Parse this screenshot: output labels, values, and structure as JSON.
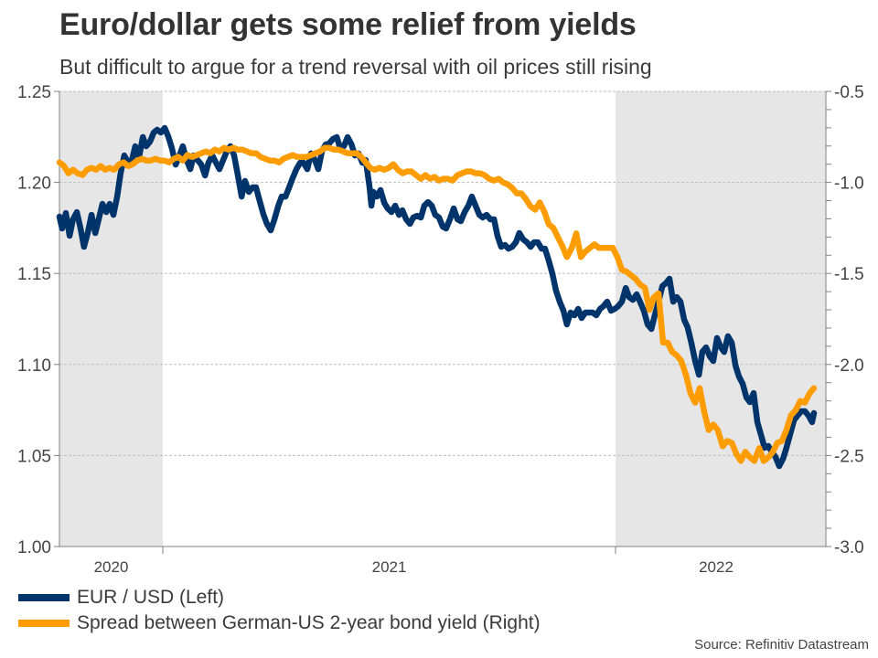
{
  "title": "Euro/dollar gets some relief from yields",
  "subtitle": "But difficult to argue for a trend reversal with oil prices still rising",
  "source": "Source: Refinitiv Datastream",
  "chart_data": {
    "type": "line",
    "title": "Euro/dollar gets some relief from yields",
    "subtitle": "But difficult to argue for a trend reversal with oil prices still rising",
    "xlabel": "",
    "x_axis": {
      "type": "time",
      "range": [
        "2020-10-08",
        "2022-05-28"
      ],
      "tick_labels": [
        "2020",
        "2021",
        "2022"
      ],
      "year_boundaries": [
        "2021-01-01",
        "2022-01-01"
      ],
      "shaded_periods": [
        [
          "2020-10-08",
          "2020-12-31"
        ],
        [
          "2022-01-01",
          "2022-06-05"
        ]
      ]
    },
    "y_left": {
      "label": "EUR / USD",
      "range": [
        1.0,
        1.25
      ],
      "ticks": [
        "1.00",
        "1.05",
        "1.10",
        "1.15",
        "1.20",
        "1.25"
      ]
    },
    "y_right": {
      "label": "Spread",
      "range": [
        -3.0,
        -0.5
      ],
      "ticks": [
        "-3.0",
        "-2.5",
        "-2.0",
        "-1.5",
        "-1.0",
        "-0.5"
      ]
    },
    "grid": true,
    "legend_position": "bottom-left",
    "colors": {
      "eurusd": "#00346b",
      "spread": "#ff9d00",
      "shade": "#e6e6e6",
      "grid": "#bdbdbd",
      "axis": "#808080"
    },
    "series": [
      {
        "name": "EUR / USD (Left)",
        "axis": "left",
        "x_months": [
          0,
          0.07,
          0.17,
          0.27,
          0.36,
          0.46,
          0.56,
          0.65,
          0.75,
          0.85,
          0.95,
          1.04,
          1.14,
          1.24,
          1.33,
          1.43,
          1.53,
          1.62,
          1.72,
          1.82,
          1.92,
          2.01,
          2.11,
          2.21,
          2.3,
          2.4,
          2.5,
          2.59,
          2.69,
          2.79,
          2.89,
          2.98,
          3.08,
          3.18,
          3.27,
          3.37,
          3.47,
          3.56,
          3.66,
          3.76,
          3.86,
          3.95,
          4.05,
          4.15,
          4.24,
          4.34,
          4.44,
          4.53,
          4.63,
          4.73,
          4.83,
          4.92,
          5.02,
          5.12,
          5.21,
          5.31,
          5.41,
          5.5,
          5.6,
          5.7,
          5.8,
          5.89,
          5.99,
          6.09,
          6.18,
          6.28,
          6.38,
          6.47,
          6.57,
          6.67,
          6.77,
          6.86,
          6.96,
          7.06,
          7.15,
          7.25,
          7.35,
          7.44,
          7.54,
          7.64,
          7.74,
          7.83,
          7.93,
          8.03,
          8.12,
          8.22,
          8.27,
          8.32,
          8.41,
          8.51,
          8.61,
          8.7,
          8.8,
          8.9,
          9.0,
          9.09,
          9.19,
          9.29,
          9.38,
          9.48,
          9.58,
          9.67,
          9.77,
          9.87,
          9.96,
          10.06,
          10.16,
          10.25,
          10.35,
          10.45,
          10.55,
          10.64,
          10.74,
          10.84,
          10.93,
          11.03,
          11.13,
          11.22,
          11.32,
          11.42,
          11.52,
          11.61,
          11.71,
          11.81,
          11.9,
          12.0,
          12.1,
          12.19,
          12.29,
          12.39,
          12.49,
          12.58,
          12.68,
          12.78,
          12.87,
          12.97,
          13.07,
          13.16,
          13.26,
          13.36,
          13.45,
          13.55,
          13.65,
          13.75,
          13.84,
          13.94,
          14.04,
          14.13,
          14.23,
          14.33,
          14.42,
          14.52,
          14.62,
          14.72,
          14.81,
          14.91,
          15.01,
          15.1,
          15.2,
          15.3,
          15.39,
          15.49,
          15.59,
          15.69,
          15.78,
          15.88,
          15.98,
          16.07,
          16.17,
          16.27,
          16.36,
          16.46,
          16.56,
          16.65,
          16.75,
          16.85,
          16.95,
          17.04,
          17.14,
          17.24,
          17.33,
          17.43,
          17.53,
          17.62,
          17.72,
          17.82,
          17.92,
          18.01,
          18.11,
          18.21,
          18.3,
          18.4,
          18.5,
          18.59,
          18.69,
          18.79,
          18.89,
          18.98,
          19.08,
          19.18,
          19.27,
          19.37,
          19.47,
          19.56,
          19.66,
          19.76,
          19.86,
          19.95,
          20.0
        ],
        "values": [
          1.1812,
          1.1747,
          1.1832,
          1.1707,
          1.1797,
          1.1837,
          1.1747,
          1.1646,
          1.1722,
          1.1822,
          1.1722,
          1.1797,
          1.1882,
          1.1837,
          1.1882,
          1.1822,
          1.1922,
          1.2048,
          1.2148,
          1.2108,
          1.2123,
          1.2199,
          1.2138,
          1.2249,
          1.2199,
          1.2224,
          1.2274,
          1.2289,
          1.2274,
          1.2299,
          1.2249,
          1.2189,
          1.2098,
          1.2148,
          1.2199,
          1.2123,
          1.2073,
          1.2148,
          1.2123,
          1.2098,
          1.2038,
          1.2108,
          1.2148,
          1.2108,
          1.2073,
          1.2123,
          1.2173,
          1.2199,
          1.2148,
          1.2038,
          1.1922,
          1.2008,
          1.1948,
          1.1973,
          1.1973,
          1.1897,
          1.1822,
          1.1772,
          1.1737,
          1.1797,
          1.1872,
          1.1922,
          1.1922,
          1.1973,
          1.2023,
          1.2073,
          1.2108,
          1.2108,
          1.2073,
          1.2159,
          1.2123,
          1.2073,
          1.2173,
          1.2209,
          1.2214,
          1.2239,
          1.2249,
          1.2189,
          1.2199,
          1.2249,
          1.2209,
          1.2148,
          1.2159,
          1.2108,
          1.2123,
          1.1973,
          1.1872,
          1.1948,
          1.1922,
          1.1958,
          1.1887,
          1.1857,
          1.1837,
          1.1872,
          1.1822,
          1.1847,
          1.1797,
          1.1772,
          1.1807,
          1.1817,
          1.1807,
          1.1872,
          1.1892,
          1.1872,
          1.1822,
          1.1807,
          1.1757,
          1.1747,
          1.1797,
          1.1857,
          1.1797,
          1.1787,
          1.1837,
          1.1872,
          1.1922,
          1.1872,
          1.1822,
          1.1807,
          1.1822,
          1.1797,
          1.1797,
          1.1707,
          1.1646,
          1.1656,
          1.1636,
          1.1646,
          1.1671,
          1.1722,
          1.1687,
          1.1671,
          1.1646,
          1.1671,
          1.1671,
          1.1636,
          1.1636,
          1.1571,
          1.1496,
          1.1406,
          1.1345,
          1.1295,
          1.122,
          1.1285,
          1.127,
          1.1305,
          1.1255,
          1.1285,
          1.1285,
          1.1285,
          1.127,
          1.1305,
          1.132,
          1.1345,
          1.1295,
          1.1305,
          1.132,
          1.1345,
          1.142,
          1.137,
          1.1355,
          1.1385,
          1.1345,
          1.1295,
          1.122,
          1.1195,
          1.127,
          1.1345,
          1.143,
          1.1446,
          1.1471,
          1.1345,
          1.137,
          1.1345,
          1.1245,
          1.1205,
          1.1119,
          1.1019,
          1.0944,
          1.1069,
          1.1094,
          1.1044,
          1.1019,
          1.1145,
          1.1094,
          1.1069,
          1.1155,
          1.1119,
          1.0994,
          1.0934,
          1.0894,
          1.0818,
          1.0793,
          1.0843,
          1.0683,
          1.0618,
          1.0542,
          1.0552,
          1.0517,
          1.0492,
          1.0442,
          1.0482,
          1.0542,
          1.0618,
          1.0693,
          1.0718,
          1.0743,
          1.0743,
          1.0718,
          1.0683,
          1.0733
        ]
      },
      {
        "name": "Spread between German-US 2-year bond yield (Right)",
        "axis": "right",
        "x_months": [
          0,
          0.12,
          0.24,
          0.36,
          0.48,
          0.61,
          0.73,
          0.85,
          0.97,
          1.09,
          1.21,
          1.33,
          1.45,
          1.58,
          1.7,
          1.82,
          1.94,
          2.06,
          2.18,
          2.3,
          2.42,
          2.55,
          2.67,
          2.79,
          2.91,
          3.03,
          3.15,
          3.27,
          3.39,
          3.52,
          3.64,
          3.76,
          3.88,
          4.0,
          4.12,
          4.24,
          4.36,
          4.48,
          4.61,
          4.73,
          4.85,
          4.97,
          5.09,
          5.21,
          5.33,
          5.45,
          5.58,
          5.7,
          5.82,
          5.94,
          6.06,
          6.18,
          6.3,
          6.42,
          6.55,
          6.67,
          6.79,
          6.91,
          7.03,
          7.15,
          7.27,
          7.39,
          7.52,
          7.64,
          7.76,
          7.88,
          8.0,
          8.12,
          8.24,
          8.36,
          8.48,
          8.61,
          8.73,
          8.85,
          8.97,
          9.09,
          9.21,
          9.33,
          9.45,
          9.58,
          9.7,
          9.82,
          9.94,
          10.06,
          10.18,
          10.3,
          10.42,
          10.55,
          10.67,
          10.79,
          10.91,
          11.03,
          11.15,
          11.27,
          11.39,
          11.52,
          11.64,
          11.76,
          11.88,
          12.0,
          12.12,
          12.24,
          12.36,
          12.48,
          12.61,
          12.73,
          12.85,
          12.97,
          13.09,
          13.21,
          13.33,
          13.45,
          13.58,
          13.7,
          13.82,
          13.94,
          14.06,
          14.18,
          14.3,
          14.42,
          14.55,
          14.67,
          14.79,
          14.91,
          15.03,
          15.15,
          15.27,
          15.39,
          15.52,
          15.64,
          15.76,
          15.88,
          16.0,
          16.12,
          16.24,
          16.36,
          16.48,
          16.61,
          16.73,
          16.85,
          16.97,
          17.09,
          17.21,
          17.33,
          17.45,
          17.58,
          17.7,
          17.82,
          17.94,
          18.06,
          18.18,
          18.3,
          18.42,
          18.55,
          18.67,
          18.79,
          18.91,
          19.03,
          19.15,
          19.27,
          19.39,
          19.52,
          19.64,
          19.76,
          19.88,
          20.0
        ],
        "values": [
          -0.89,
          -0.91,
          -0.95,
          -0.93,
          -0.95,
          -0.96,
          -0.93,
          -0.92,
          -0.93,
          -0.91,
          -0.93,
          -0.92,
          -0.93,
          -0.9,
          -0.89,
          -0.91,
          -0.9,
          -0.88,
          -0.87,
          -0.88,
          -0.88,
          -0.87,
          -0.88,
          -0.88,
          -0.89,
          -0.87,
          -0.86,
          -0.88,
          -0.85,
          -0.86,
          -0.85,
          -0.84,
          -0.83,
          -0.84,
          -0.82,
          -0.83,
          -0.81,
          -0.82,
          -0.81,
          -0.82,
          -0.82,
          -0.83,
          -0.84,
          -0.84,
          -0.86,
          -0.87,
          -0.88,
          -0.88,
          -0.89,
          -0.87,
          -0.86,
          -0.85,
          -0.86,
          -0.86,
          -0.86,
          -0.85,
          -0.84,
          -0.83,
          -0.81,
          -0.81,
          -0.82,
          -0.82,
          -0.83,
          -0.84,
          -0.84,
          -0.84,
          -0.86,
          -0.89,
          -0.92,
          -0.93,
          -0.92,
          -0.93,
          -0.92,
          -0.9,
          -0.93,
          -0.95,
          -0.94,
          -0.94,
          -0.96,
          -0.98,
          -0.96,
          -0.98,
          -0.97,
          -0.99,
          -0.98,
          -0.98,
          -0.99,
          -0.96,
          -0.95,
          -0.94,
          -0.94,
          -0.95,
          -0.95,
          -0.96,
          -0.98,
          -0.99,
          -0.98,
          -1.0,
          -1.01,
          -1.03,
          -1.06,
          -1.06,
          -1.09,
          -1.13,
          -1.15,
          -1.11,
          -1.16,
          -1.23,
          -1.25,
          -1.3,
          -1.35,
          -1.41,
          -1.36,
          -1.28,
          -1.41,
          -1.38,
          -1.36,
          -1.34,
          -1.36,
          -1.36,
          -1.36,
          -1.36,
          -1.41,
          -1.48,
          -1.49,
          -1.51,
          -1.53,
          -1.56,
          -1.58,
          -1.7,
          -1.63,
          -1.61,
          -1.88,
          -1.88,
          -1.93,
          -1.95,
          -1.98,
          -2.06,
          -2.16,
          -2.21,
          -2.13,
          -2.26,
          -2.36,
          -2.33,
          -2.36,
          -2.45,
          -2.42,
          -2.43,
          -2.49,
          -2.53,
          -2.48,
          -2.51,
          -2.53,
          -2.46,
          -2.53,
          -2.51,
          -2.48,
          -2.43,
          -2.42,
          -2.36,
          -2.28,
          -2.25,
          -2.2,
          -2.21,
          -2.16,
          -2.13
        ]
      }
    ],
    "month_of_x0": "2020-10-08",
    "legend": [
      "EUR / USD (Left)",
      "Spread between German-US 2-year bond yield (Right)"
    ]
  }
}
